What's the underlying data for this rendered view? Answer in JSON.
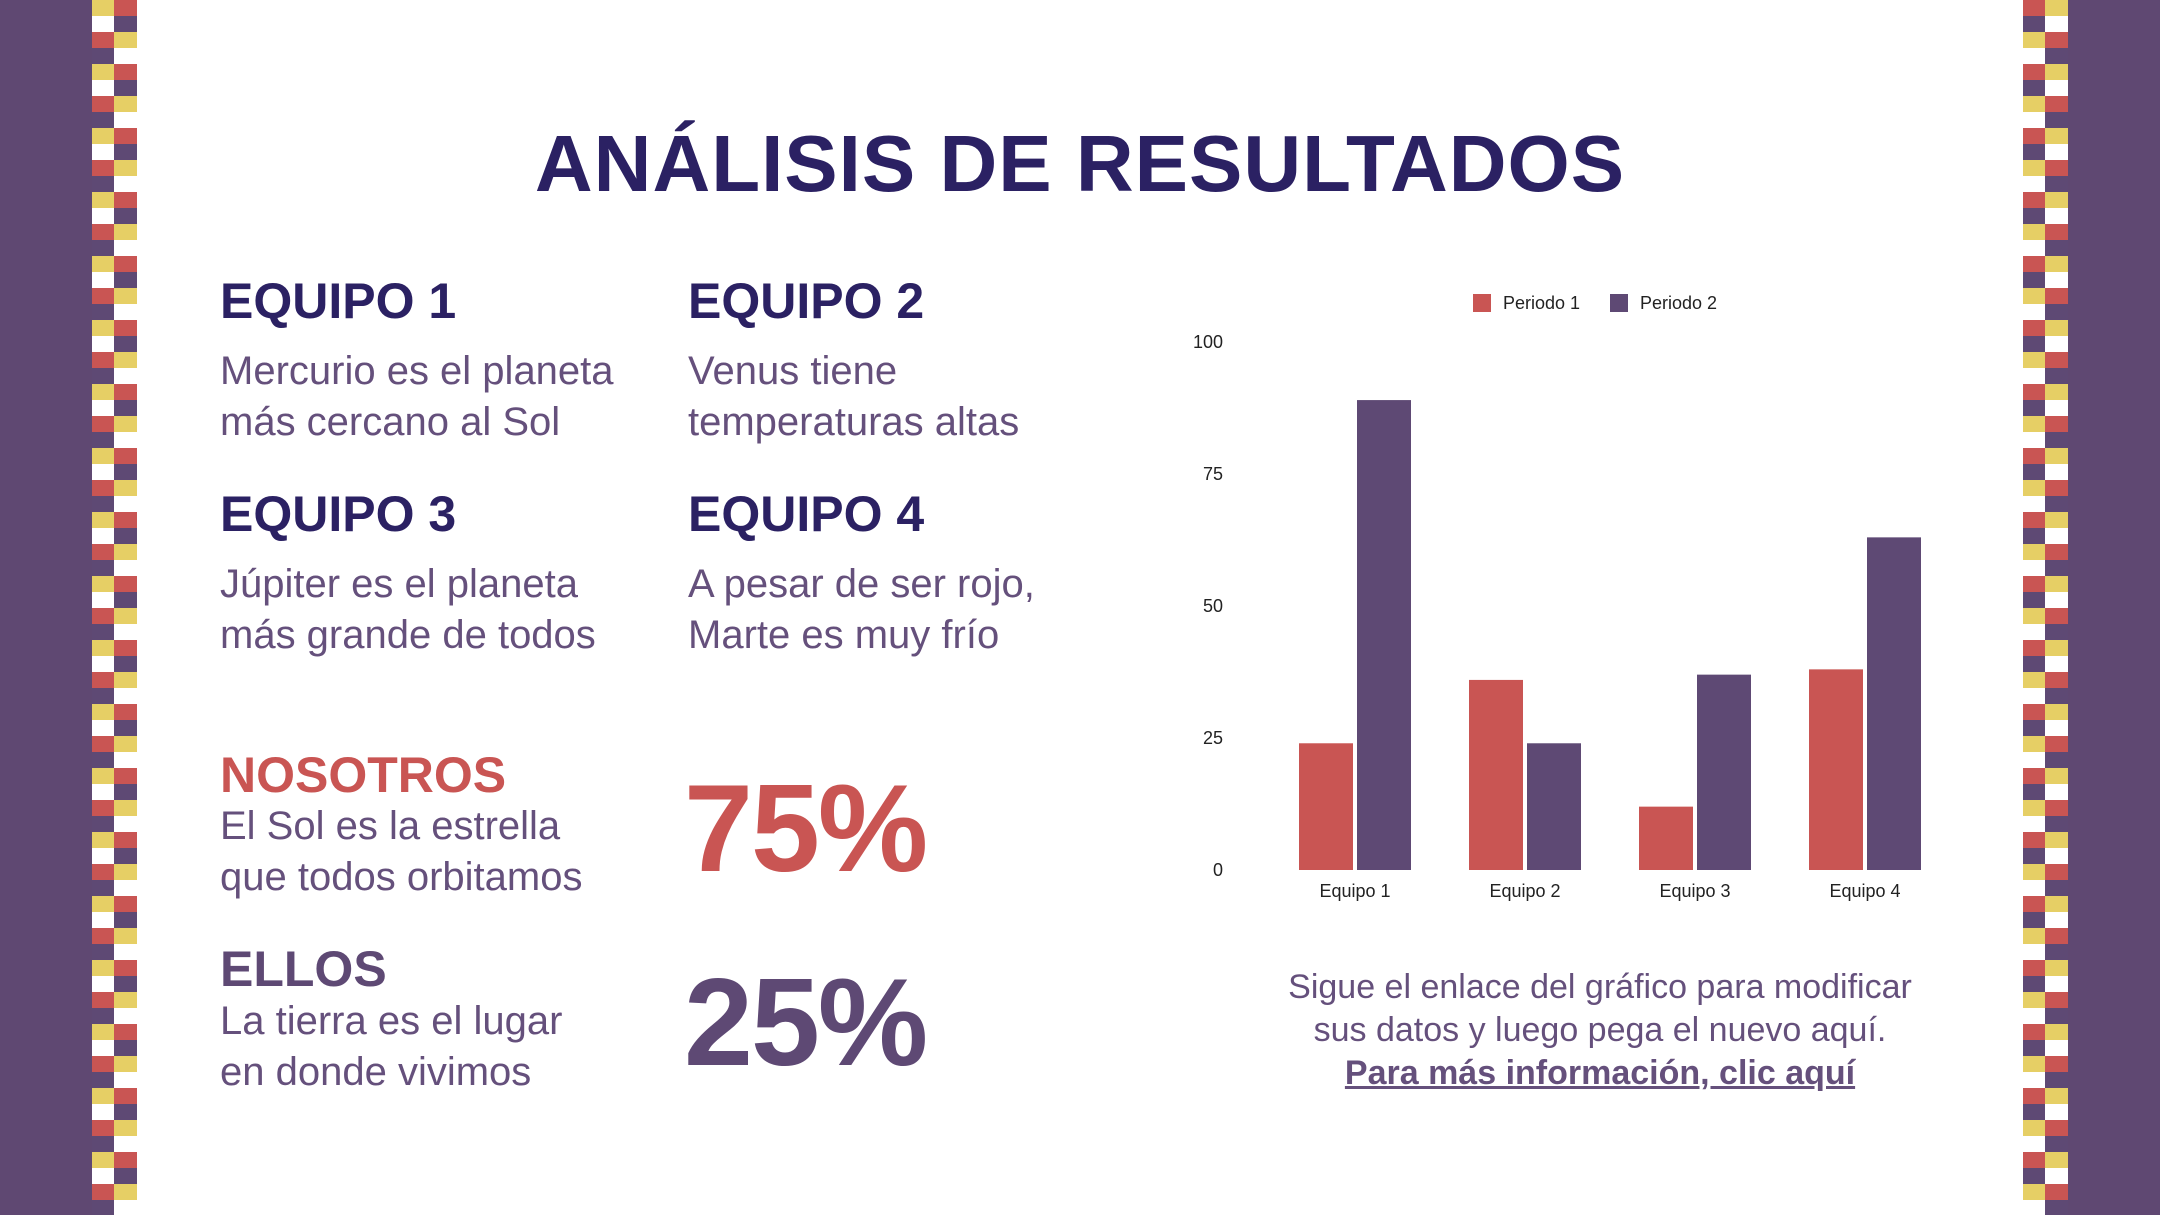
{
  "colors": {
    "accent_red": "#c95553",
    "accent_purple": "#5e4974",
    "title_navy": "#2b2163",
    "body_purple": "#65507c",
    "stripe_yellow": "#e6cf65"
  },
  "title": "ANÁLISIS DE RESULTADOS",
  "teams": [
    {
      "name": "EQUIPO 1",
      "line1": "Mercurio es el planeta",
      "line2": "más cercano al Sol"
    },
    {
      "name": "EQUIPO 2",
      "line1": "Venus tiene",
      "line2": "temperaturas altas"
    },
    {
      "name": "EQUIPO 3",
      "line1": "Júpiter es el planeta",
      "line2": "más grande de todos"
    },
    {
      "name": "EQUIPO 4",
      "line1": "A pesar de ser rojo,",
      "line2": "Marte es muy frío"
    }
  ],
  "stats": [
    {
      "label": "NOSOTROS",
      "line1": "El Sol es la estrella",
      "line2": "que todos orbitamos",
      "value": "75%"
    },
    {
      "label": "ELLOS",
      "line1": "La tierra es el lugar",
      "line2": "en donde vivimos",
      "value": "25%"
    }
  ],
  "chart_data": {
    "type": "bar",
    "categories": [
      "Equipo 1",
      "Equipo 2",
      "Equipo 3",
      "Equipo 4"
    ],
    "series": [
      {
        "name": "Periodo 1",
        "color": "#c95553",
        "values": [
          24,
          36,
          12,
          38
        ]
      },
      {
        "name": "Periodo 2",
        "color": "#5e4974",
        "values": [
          89,
          24,
          37,
          63
        ]
      }
    ],
    "ylim": [
      0,
      100
    ],
    "yticks": [
      "0",
      "25",
      "50",
      "75",
      "100"
    ],
    "legend": "top",
    "grid": false
  },
  "note": {
    "line1": "Sigue el enlace del gráfico para modificar",
    "line2": "sus datos y luego pega el nuevo aquí.",
    "link": "Para más información, clic aquí"
  }
}
